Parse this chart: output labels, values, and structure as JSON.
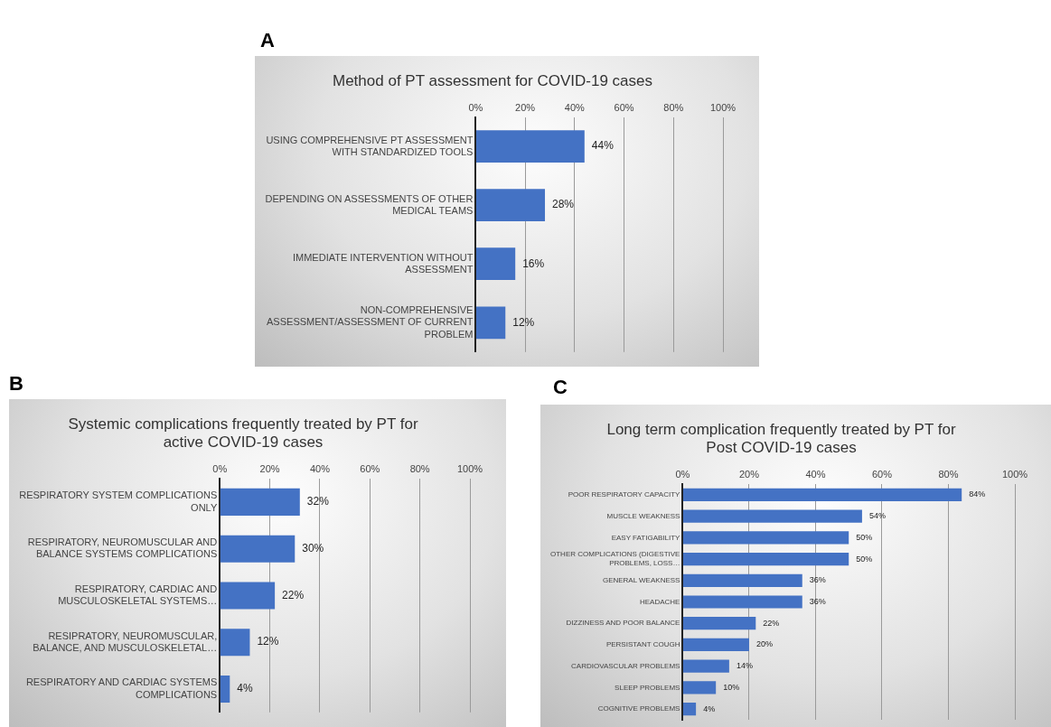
{
  "chart_data": [
    {
      "type": "bar",
      "orientation": "horizontal",
      "title": "Method of PT assessment for COVID-19 cases",
      "annotations": [
        "A"
      ],
      "categories": [
        "USING COMPREHENSIVE PT ASSESSMENT WITH STANDARDIZED TOOLS",
        "DEPENDING ON ASSESSMENTS OF OTHER MEDICAL TEAMS",
        "IMMEDIATE INTERVENTION WITHOUT ASSESSMENT",
        "NON-COMPREHENSIVE ASSESSMENT/ASSESSMENT OF CURRENT PROBLEM"
      ],
      "values": [
        44,
        28,
        16,
        12
      ],
      "value_labels": [
        "44%",
        "28%",
        "16%",
        "12%"
      ],
      "color": "#4472c4",
      "xlim": [
        0,
        100
      ],
      "xticks": [
        {
          "value": 0,
          "label": "0%"
        },
        {
          "value": 20,
          "label": "20%"
        },
        {
          "value": 40,
          "label": "40%"
        },
        {
          "value": 60,
          "label": "60%"
        },
        {
          "value": 80,
          "label": "80%"
        },
        {
          "value": 100,
          "label": "100%"
        }
      ],
      "grid": "x",
      "legend": false
    },
    {
      "type": "bar",
      "orientation": "horizontal",
      "title": "Systemic complications frequently treated by PT for active COVID-19 cases",
      "annotations": [
        "B"
      ],
      "categories": [
        "RESPIRATORY SYSTEM COMPLICATIONS ONLY",
        "RESPIRATORY, NEUROMUSCULAR AND BALANCE SYSTEMS COMPLICATIONS",
        "RESPIRATORY, CARDIAC AND MUSCULOSKELETAL SYSTEMS…",
        "RESIPRATORY, NEUROMUSCULAR, BALANCE, AND MUSCULOSKELETAL…",
        "RESPIRATORY AND CARDIAC SYSTEMS COMPLICATIONS"
      ],
      "values": [
        32,
        30,
        22,
        12,
        4
      ],
      "value_labels": [
        "32%",
        "30%",
        "22%",
        "12%",
        "4%"
      ],
      "color": "#4472c4",
      "xlim": [
        0,
        100
      ],
      "xticks": [
        {
          "value": 0,
          "label": "0%"
        },
        {
          "value": 20,
          "label": "20%"
        },
        {
          "value": 40,
          "label": "40%"
        },
        {
          "value": 60,
          "label": "60%"
        },
        {
          "value": 80,
          "label": "80%"
        },
        {
          "value": 100,
          "label": "100%"
        }
      ],
      "grid": "x",
      "legend": false
    },
    {
      "type": "bar",
      "orientation": "horizontal",
      "title": "Long term complication frequently treated by PT for Post COVID-19 cases",
      "annotations": [
        "C"
      ],
      "categories": [
        "POOR RESPIRATORY CAPACITY",
        "MUSCLE WEAKNESS",
        "EASY FATIGABILITY",
        "OTHER COMPLICATIONS (DIGESTIVE PROBLEMS, LOSS…",
        "GENERAL WEAKNESS",
        "HEADACHE",
        "DIZZINESS AND POOR BALANCE",
        "PERSISTANT COUGH",
        "CARDIOVASCULAR PROBLEMS",
        "SLEEP PROBLEMS",
        "COGNITIVE PROBLEMS"
      ],
      "values": [
        84,
        54,
        50,
        50,
        36,
        36,
        22,
        20,
        14,
        10,
        4
      ],
      "value_labels": [
        "84%",
        "54%",
        "50%",
        "50%",
        "36%",
        "36%",
        "22%",
        "20%",
        "14%",
        "10%",
        "4%"
      ],
      "color": "#4472c4",
      "xlim": [
        0,
        100
      ],
      "xticks": [
        {
          "value": 0,
          "label": "0%"
        },
        {
          "value": 20,
          "label": "20%"
        },
        {
          "value": 40,
          "label": "40%"
        },
        {
          "value": 60,
          "label": "60%"
        },
        {
          "value": 80,
          "label": "80%"
        },
        {
          "value": 100,
          "label": "100%"
        }
      ],
      "grid": "x",
      "legend": false
    }
  ]
}
